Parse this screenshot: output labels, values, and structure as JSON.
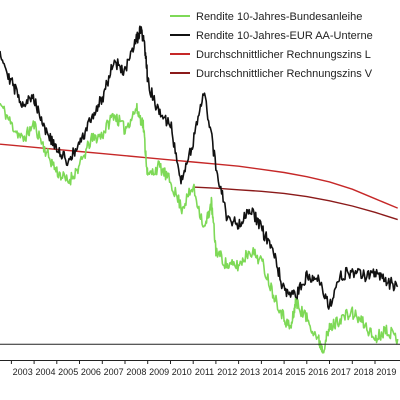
{
  "chart_data": {
    "type": "line",
    "title": "",
    "xlabel": "",
    "ylabel": "",
    "x_axis": {
      "unit": "year",
      "tick_labels": [
        "2003",
        "2004",
        "2005",
        "2006",
        "2007",
        "2008",
        "2009",
        "2010",
        "2011",
        "2012",
        "2013",
        "2014",
        "2015",
        "2016",
        "2017",
        "2018",
        "2019"
      ],
      "visible_range": [
        2002.5,
        2020.1
      ]
    },
    "y_axis": {
      "unit": "percent",
      "visible_range": [
        -0.3,
        6.0
      ],
      "tick_labels_visible": false,
      "baseline_value": 0
    },
    "grid": false,
    "legend": {
      "placement": "top-right",
      "clipped": true
    },
    "series": [
      {
        "name": "Rendite 10-Jahres-Bundesanleihe",
        "color": "#7ED957",
        "x": [
          2002.5,
          2003.0,
          2003.5,
          2004.0,
          2004.5,
          2005.0,
          2005.5,
          2006.0,
          2006.5,
          2007.0,
          2007.5,
          2008.0,
          2008.5,
          2008.8,
          2009.0,
          2009.5,
          2010.0,
          2010.5,
          2011.0,
          2011.5,
          2011.8,
          2012.0,
          2012.5,
          2013.0,
          2013.5,
          2014.0,
          2014.5,
          2015.0,
          2015.3,
          2015.5,
          2016.0,
          2016.5,
          2016.7,
          2017.0,
          2017.5,
          2018.0,
          2018.5,
          2019.0,
          2019.5,
          2020.0
        ],
        "y": [
          4.6,
          4.2,
          3.9,
          4.2,
          3.7,
          3.3,
          3.1,
          3.4,
          3.9,
          4.0,
          4.4,
          4.1,
          4.5,
          4.2,
          3.2,
          3.4,
          3.1,
          2.6,
          3.0,
          2.2,
          2.7,
          1.8,
          1.5,
          1.5,
          1.8,
          1.6,
          1.0,
          0.5,
          0.3,
          0.8,
          0.5,
          0.1,
          -0.1,
          0.3,
          0.5,
          0.6,
          0.4,
          0.1,
          0.3,
          0.1
        ]
      },
      {
        "name": "Rendite 10-Jahres-EUR AA-Unterne",
        "color": "#111111",
        "x": [
          2002.5,
          2003.0,
          2003.5,
          2004.0,
          2004.5,
          2005.0,
          2005.5,
          2006.0,
          2006.5,
          2007.0,
          2007.5,
          2008.0,
          2008.5,
          2008.7,
          2008.9,
          2009.0,
          2009.5,
          2010.0,
          2010.5,
          2011.0,
          2011.5,
          2012.0,
          2012.5,
          2013.0,
          2013.5,
          2014.0,
          2014.5,
          2015.0,
          2015.5,
          2016.0,
          2016.5,
          2017.0,
          2017.5,
          2018.0,
          2018.5,
          2019.0,
          2019.5,
          2020.0
        ],
        "y": [
          5.6,
          5.0,
          4.6,
          4.7,
          4.1,
          3.7,
          3.5,
          3.8,
          4.3,
          4.7,
          5.4,
          5.2,
          5.8,
          6.0,
          5.6,
          5.0,
          4.4,
          4.2,
          3.1,
          3.9,
          4.8,
          3.4,
          2.4,
          2.3,
          2.6,
          2.2,
          1.8,
          1.0,
          0.9,
          1.3,
          1.3,
          0.7,
          1.3,
          1.4,
          1.3,
          1.4,
          1.2,
          1.1
        ]
      },
      {
        "name": "Durchschnittlicher Rechnungszins L",
        "color": "#C62828",
        "x": [
          2002.5,
          2003,
          2004,
          2005,
          2006,
          2007,
          2008,
          2009,
          2010,
          2011,
          2012,
          2013,
          2014,
          2015,
          2016,
          2017,
          2018,
          2019,
          2020
        ],
        "y": [
          3.82,
          3.8,
          3.76,
          3.72,
          3.68,
          3.64,
          3.6,
          3.56,
          3.52,
          3.48,
          3.44,
          3.4,
          3.34,
          3.28,
          3.2,
          3.1,
          2.96,
          2.78,
          2.6
        ]
      },
      {
        "name": "Durchschnittlicher Rechnungszins V",
        "color": "#8B1A1A",
        "x": [
          2011.0,
          2012,
          2013,
          2014,
          2015,
          2016,
          2017,
          2018,
          2019,
          2020
        ],
        "y": [
          3.0,
          2.98,
          2.95,
          2.92,
          2.88,
          2.82,
          2.74,
          2.64,
          2.52,
          2.38
        ]
      }
    ]
  }
}
